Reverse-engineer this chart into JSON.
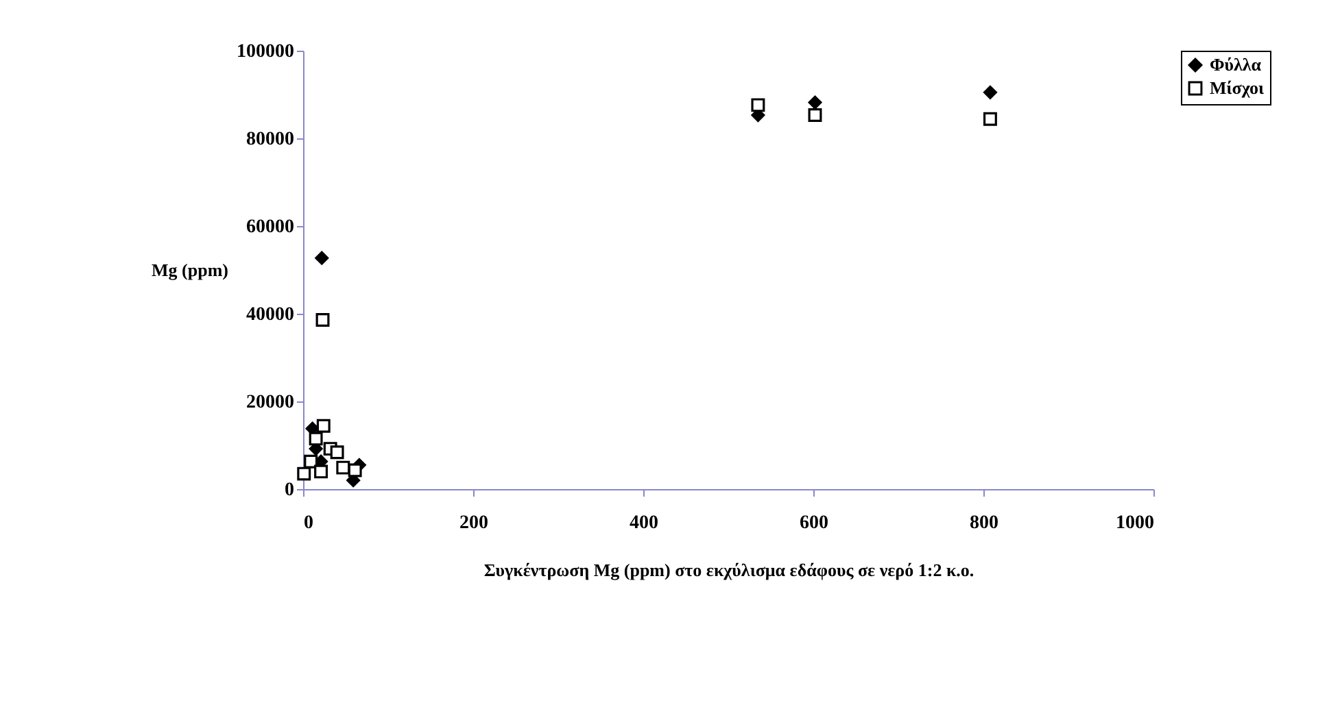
{
  "chart_data": {
    "type": "scatter",
    "xlabel": "Συγκέντρωση Mg (ppm) στο εκχύλισμα εδάφους σε νερό 1:2 κ.ο.",
    "ylabel": "Mg (ppm)",
    "xlim": [
      0,
      1000
    ],
    "xticks": [
      0,
      200,
      400,
      600,
      800,
      1000
    ],
    "ylim": [
      0,
      100000
    ],
    "yticks": [
      0,
      20000,
      40000,
      60000,
      80000,
      100000
    ],
    "grid": false,
    "legend": "right",
    "series": [
      {
        "name": "Φύλλα",
        "color": "#000000",
        "marker": "diamond",
        "x": [
          22,
          11,
          15,
          21,
          59,
          66,
          535,
          602,
          808
        ],
        "values": [
          52700,
          13800,
          9200,
          6300,
          2000,
          5500,
          85300,
          88200,
          90500
        ]
      },
      {
        "name": "Μίσχοι",
        "color": "#000000",
        "marker": "square",
        "x": [
          23,
          24,
          15,
          9,
          1,
          32,
          40,
          47,
          61,
          21,
          535,
          602,
          808
        ],
        "values": [
          38600,
          14400,
          11500,
          6300,
          3500,
          9200,
          8400,
          4900,
          4300,
          4000,
          87600,
          85300,
          84400
        ]
      }
    ]
  }
}
